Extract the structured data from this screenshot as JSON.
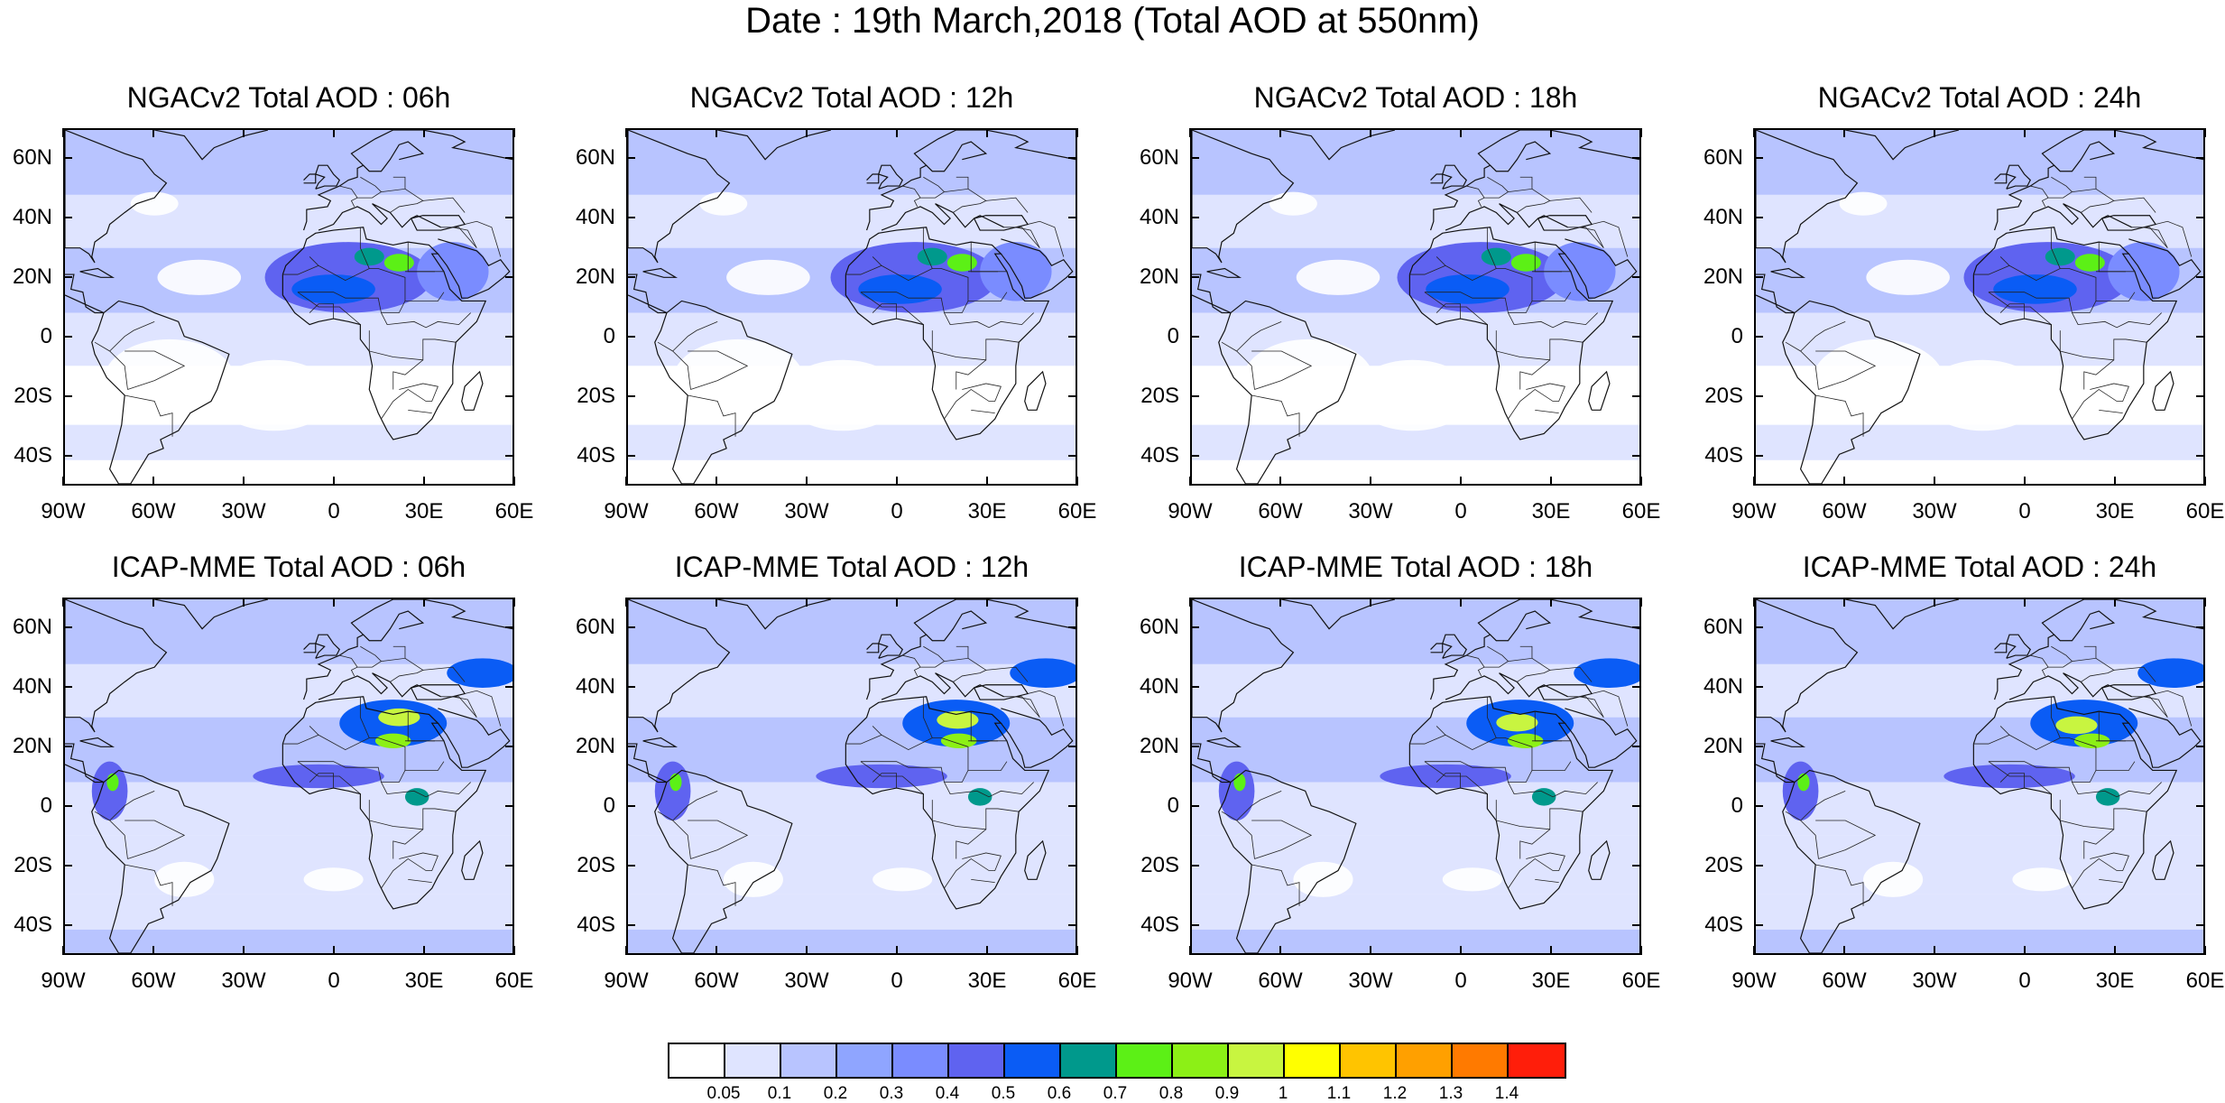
{
  "title": "Date : 19th March,2018 (Total AOD at 550nm)",
  "panels": [
    {
      "title": "NGACv2 Total AOD : 06h",
      "model": "NGACv2",
      "hour": "06h"
    },
    {
      "title": "NGACv2 Total AOD : 12h",
      "model": "NGACv2",
      "hour": "12h"
    },
    {
      "title": "NGACv2 Total AOD : 18h",
      "model": "NGACv2",
      "hour": "18h"
    },
    {
      "title": "NGACv2 Total AOD : 24h",
      "model": "NGACv2",
      "hour": "24h"
    },
    {
      "title": "ICAP-MME Total AOD : 06h",
      "model": "ICAP-MME",
      "hour": "06h"
    },
    {
      "title": "ICAP-MME Total AOD : 12h",
      "model": "ICAP-MME",
      "hour": "12h"
    },
    {
      "title": "ICAP-MME Total AOD : 18h",
      "model": "ICAP-MME",
      "hour": "18h"
    },
    {
      "title": "ICAP-MME Total AOD : 24h",
      "model": "ICAP-MME",
      "hour": "24h"
    }
  ],
  "axes": {
    "lat_labels": [
      "60N",
      "40N",
      "20N",
      "0",
      "20S",
      "40S"
    ],
    "lat_values": [
      60,
      40,
      20,
      0,
      -20,
      -40
    ],
    "lon_labels": [
      "90W",
      "60W",
      "30W",
      "0",
      "30E",
      "60E"
    ],
    "lon_values": [
      -90,
      -60,
      -30,
      0,
      30,
      60
    ],
    "lat_range": [
      -50,
      70
    ],
    "lon_range": [
      -90,
      60
    ]
  },
  "colorbar": {
    "colors": [
      "#ffffff",
      "#dfe4ff",
      "#b8c4ff",
      "#8fa5ff",
      "#7a8cff",
      "#5f63f0",
      "#0a5cf5",
      "#00998c",
      "#5cf016",
      "#8cf016",
      "#c8f540",
      "#ffff00",
      "#ffc400",
      "#ffa000",
      "#ff7a00",
      "#ff1e0a"
    ],
    "labels": [
      "0.05",
      "0.1",
      "0.2",
      "0.3",
      "0.4",
      "0.5",
      "0.6",
      "0.7",
      "0.8",
      "0.9",
      "1",
      "1.1",
      "1.2",
      "1.3",
      "1.4"
    ]
  }
}
